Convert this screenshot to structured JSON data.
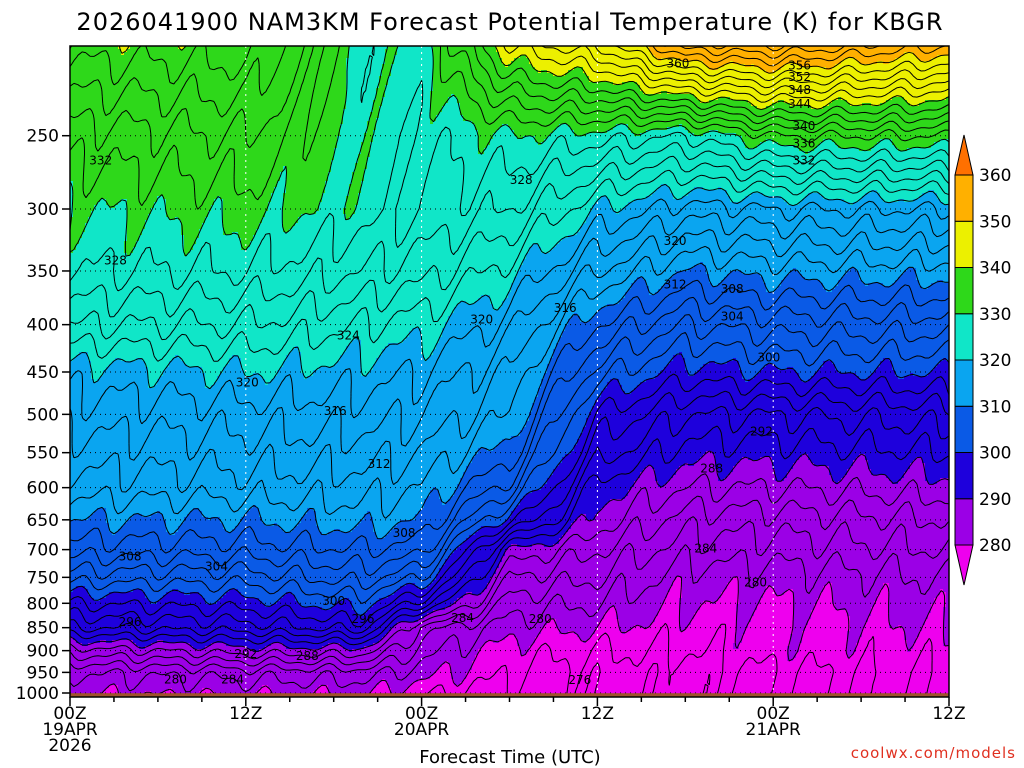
{
  "chart_data": {
    "type": "heatmap",
    "subtype": "filled-contour time-height cross section",
    "title": "2026041900 NAM3KM Forecast Potential Temperature (K) for KBGR",
    "xlabel": "Forecast Time (UTC)",
    "ylabel": "",
    "x_range_hours": [
      0,
      60
    ],
    "y_range_hpa": [
      1010,
      200
    ],
    "y_scale": "log-pressure",
    "x_ticks": [
      {
        "hour": 0,
        "lines": [
          "00Z",
          "19APR",
          "2026"
        ]
      },
      {
        "hour": 12,
        "lines": [
          "12Z"
        ]
      },
      {
        "hour": 24,
        "lines": [
          "00Z",
          "20APR"
        ]
      },
      {
        "hour": 36,
        "lines": [
          "12Z"
        ]
      },
      {
        "hour": 48,
        "lines": [
          "00Z",
          "21APR"
        ]
      },
      {
        "hour": 60,
        "lines": [
          "12Z"
        ]
      }
    ],
    "y_ticks": [
      250,
      300,
      350,
      400,
      450,
      500,
      550,
      600,
      650,
      700,
      750,
      800,
      850,
      900,
      950,
      1000
    ],
    "grid": true,
    "colorbar": {
      "position": "right",
      "levels": [
        280,
        290,
        300,
        310,
        320,
        330,
        340,
        350,
        360
      ],
      "labels": [
        "360",
        "350",
        "340",
        "330",
        "320",
        "310",
        "300",
        "290",
        "280"
      ],
      "colors": [
        "#ee00ee",
        "#9b00e6",
        "#1e00dc",
        "#0a5ae6",
        "#0aa5f0",
        "#10e6c8",
        "#2ed81a",
        "#ecf000",
        "#ffb000",
        "#ff7000"
      ]
    },
    "ground_color": "#a0522d",
    "contour_interval_K": 2,
    "theta_profiles": [
      {
        "hour": 0,
        "p": [
          1010,
          950,
          900,
          850,
          800,
          750,
          700,
          650,
          600,
          550,
          500,
          450,
          400,
          350,
          300,
          250,
          200
        ],
        "theta": [
          280,
          282,
          287,
          294,
          298,
          303,
          307,
          310,
          313,
          315,
          317,
          319,
          324,
          328,
          330,
          333,
          339
        ]
      },
      {
        "hour": 12,
        "p": [
          1010,
          950,
          900,
          850,
          800,
          750,
          700,
          650,
          600,
          550,
          500,
          450,
          400,
          350,
          300,
          250,
          200
        ],
        "theta": [
          280,
          283,
          289,
          295,
          299,
          303,
          307,
          310,
          313,
          315,
          317,
          320,
          324,
          328,
          331,
          334,
          339
        ]
      },
      {
        "hour": 20,
        "p": [
          1010,
          950,
          900,
          850,
          800,
          750,
          700,
          650,
          600,
          550,
          500,
          450,
          400,
          350,
          300,
          250,
          200
        ],
        "theta": [
          280,
          283,
          289,
          297,
          301,
          305,
          308,
          311,
          313,
          315,
          317,
          319,
          322,
          326,
          329,
          329,
          329
        ]
      },
      {
        "hour": 24,
        "p": [
          1010,
          950,
          900,
          850,
          800,
          750,
          700,
          650,
          600,
          550,
          500,
          450,
          400,
          350,
          300,
          250,
          200
        ],
        "theta": [
          278,
          281,
          283,
          285,
          295,
          302,
          307,
          310,
          312,
          314,
          316,
          318,
          321,
          325,
          328,
          328,
          329
        ]
      },
      {
        "hour": 30,
        "p": [
          1010,
          950,
          900,
          850,
          800,
          750,
          700,
          650,
          600,
          550,
          500,
          450,
          400,
          350,
          300,
          250,
          200
        ],
        "theta": [
          277,
          278,
          279,
          281,
          283,
          286,
          290,
          299,
          305,
          309,
          312,
          314,
          317,
          321,
          326,
          330,
          342
        ]
      },
      {
        "hour": 36,
        "p": [
          1010,
          950,
          900,
          850,
          800,
          750,
          700,
          650,
          600,
          550,
          500,
          450,
          400,
          350,
          300,
          250,
          200
        ],
        "theta": [
          277,
          277,
          278,
          280,
          282,
          284,
          286,
          289,
          291,
          295,
          298,
          303,
          308,
          314,
          320,
          329,
          346
        ]
      },
      {
        "hour": 42,
        "p": [
          1010,
          950,
          900,
          850,
          800,
          750,
          700,
          650,
          600,
          550,
          500,
          450,
          400,
          350,
          300,
          250,
          200
        ],
        "theta": [
          277,
          277,
          278,
          279,
          280,
          281,
          283,
          285,
          288,
          291,
          294,
          299,
          304,
          310,
          317,
          328,
          355
        ]
      },
      {
        "hour": 48,
        "p": [
          1010,
          950,
          900,
          850,
          800,
          750,
          700,
          650,
          600,
          550,
          500,
          450,
          400,
          350,
          300,
          250,
          200
        ],
        "theta": [
          278,
          278,
          279,
          279,
          280,
          281,
          283,
          285,
          288,
          291,
          294,
          300,
          305,
          311,
          318,
          332,
          356
        ]
      },
      {
        "hour": 60,
        "p": [
          1010,
          950,
          900,
          850,
          800,
          750,
          700,
          650,
          600,
          550,
          500,
          450,
          400,
          350,
          300,
          250,
          200
        ],
        "theta": [
          278,
          278,
          279,
          280,
          281,
          282,
          284,
          286,
          289,
          292,
          295,
          300,
          305,
          311,
          318,
          332,
          352
        ]
      }
    ],
    "contour_labels": [
      {
        "text": "360",
        "hour": 41.5,
        "p": 209
      },
      {
        "text": "356",
        "hour": 49.8,
        "p": 210
      },
      {
        "text": "352",
        "hour": 49.8,
        "p": 216
      },
      {
        "text": "348",
        "hour": 49.8,
        "p": 223
      },
      {
        "text": "344",
        "hour": 49.8,
        "p": 231
      },
      {
        "text": "340",
        "hour": 50.1,
        "p": 244
      },
      {
        "text": "336",
        "hour": 50.1,
        "p": 255
      },
      {
        "text": "332",
        "hour": 50.1,
        "p": 266
      },
      {
        "text": "332",
        "hour": 2.1,
        "p": 266
      },
      {
        "text": "328",
        "hour": 30.8,
        "p": 279
      },
      {
        "text": "328",
        "hour": 3.1,
        "p": 341
      },
      {
        "text": "320",
        "hour": 41.3,
        "p": 325
      },
      {
        "text": "312",
        "hour": 41.3,
        "p": 362
      },
      {
        "text": "308",
        "hour": 45.2,
        "p": 366
      },
      {
        "text": "316",
        "hour": 33.8,
        "p": 384
      },
      {
        "text": "304",
        "hour": 45.2,
        "p": 392
      },
      {
        "text": "320",
        "hour": 28.1,
        "p": 395
      },
      {
        "text": "324",
        "hour": 19.0,
        "p": 411
      },
      {
        "text": "300",
        "hour": 47.7,
        "p": 434
      },
      {
        "text": "320",
        "hour": 12.1,
        "p": 462
      },
      {
        "text": "316",
        "hour": 18.1,
        "p": 496
      },
      {
        "text": "292",
        "hour": 47.2,
        "p": 522
      },
      {
        "text": "312",
        "hour": 21.1,
        "p": 566
      },
      {
        "text": "288",
        "hour": 43.8,
        "p": 572
      },
      {
        "text": "308",
        "hour": 22.8,
        "p": 672
      },
      {
        "text": "284",
        "hour": 43.4,
        "p": 698
      },
      {
        "text": "308",
        "hour": 4.1,
        "p": 712
      },
      {
        "text": "304",
        "hour": 10.0,
        "p": 730
      },
      {
        "text": "280",
        "hour": 46.8,
        "p": 760
      },
      {
        "text": "300",
        "hour": 18.0,
        "p": 795
      },
      {
        "text": "284",
        "hour": 26.8,
        "p": 830
      },
      {
        "text": "296",
        "hour": 4.1,
        "p": 838
      },
      {
        "text": "296",
        "hour": 20.0,
        "p": 832
      },
      {
        "text": "280",
        "hour": 32.1,
        "p": 832
      },
      {
        "text": "292",
        "hour": 12.0,
        "p": 907
      },
      {
        "text": "288",
        "hour": 16.2,
        "p": 912
      },
      {
        "text": "276",
        "hour": 34.8,
        "p": 968
      },
      {
        "text": "280",
        "hour": 7.2,
        "p": 967
      },
      {
        "text": "284",
        "hour": 11.1,
        "p": 967
      }
    ]
  },
  "credit": "coolwx.com/models"
}
